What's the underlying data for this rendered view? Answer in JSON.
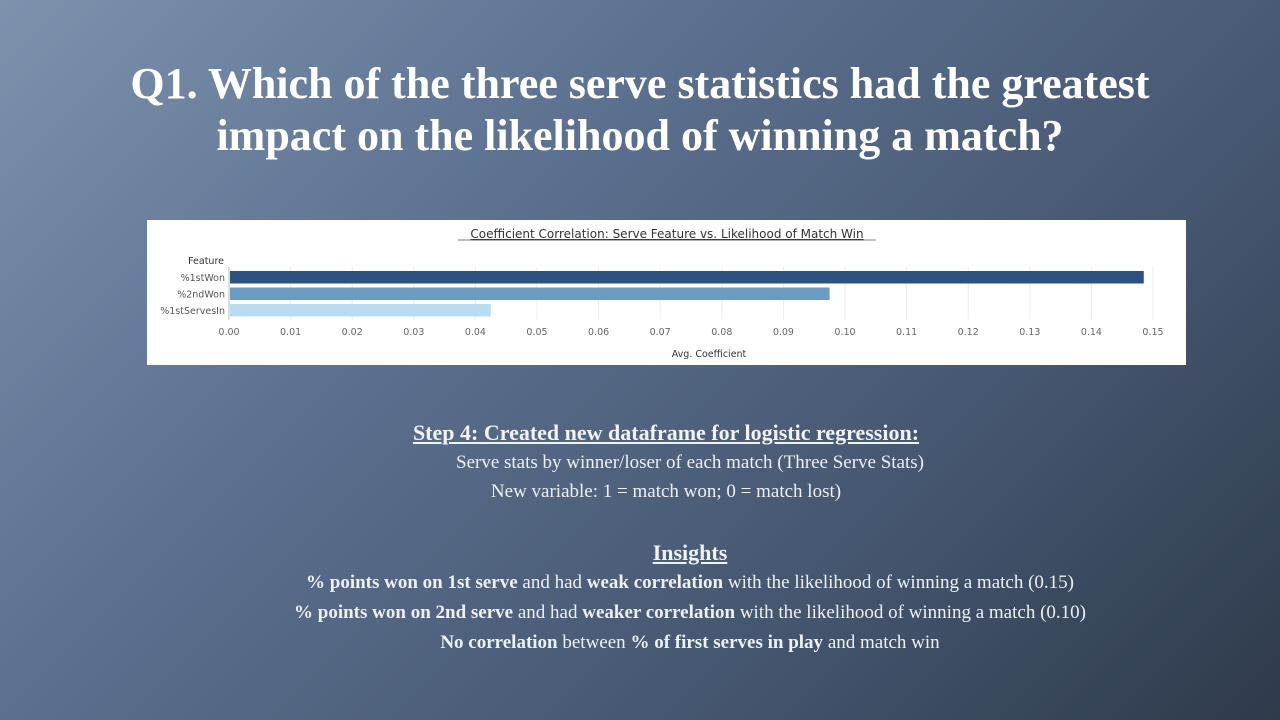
{
  "slide": {
    "title_line1": "Q1. Which of the three serve statistics had the greatest",
    "title_line2": "impact on the likelihood of winning a match?"
  },
  "chart_data": {
    "type": "bar",
    "orientation": "horizontal",
    "title": "Coefficient Correlation: Serve Feature vs. Likelihood of Match Win",
    "ylabel": "Feature",
    "xlabel": "Avg. Coefficient",
    "categories": [
      "%1stWon",
      "%2ndWon",
      "%1stServesIn"
    ],
    "values": [
      0.1485,
      0.0975,
      0.0425
    ],
    "bar_colors": [
      "#2c5282",
      "#6b9ac4",
      "#b8dcf2"
    ],
    "xlim": [
      0,
      0.15
    ],
    "x_ticks": [
      0,
      0.01,
      0.02,
      0.03,
      0.04,
      0.05,
      0.06,
      0.07,
      0.08,
      0.09,
      0.1,
      0.11,
      0.12,
      0.13,
      0.14,
      0.15
    ],
    "x_tick_labels": [
      "0.00",
      "0.01",
      "0.02",
      "0.03",
      "0.04",
      "0.05",
      "0.06",
      "0.07",
      "0.08",
      "0.09",
      "0.10",
      "0.11",
      "0.12",
      "0.13",
      "0.14",
      "0.15"
    ],
    "grid": true
  },
  "step": {
    "heading": "Step 4: Created new dataframe for logistic regression:",
    "line1": "Serve stats by winner/loser of each match  (Three Serve Stats)",
    "line2": "New variable: 1 = match won; 0 = match lost)"
  },
  "insights": {
    "heading": "Insights",
    "i1_b1": "% points won on 1st serve",
    "i1_t1": " and had ",
    "i1_b2": "weak correlation",
    "i1_t2": " with the likelihood of  winning a match (0.15)",
    "i2_b1": "% points won on 2nd serve",
    "i2_t1": " and had ",
    "i2_b2": "weaker correlation",
    "i2_t2": " with the likelihood of  winning a match (0.10)",
    "i3_b1": "No correlation",
    "i3_t1": " between ",
    "i3_b2": "% of first serves in play",
    "i3_t2": " and match win"
  }
}
